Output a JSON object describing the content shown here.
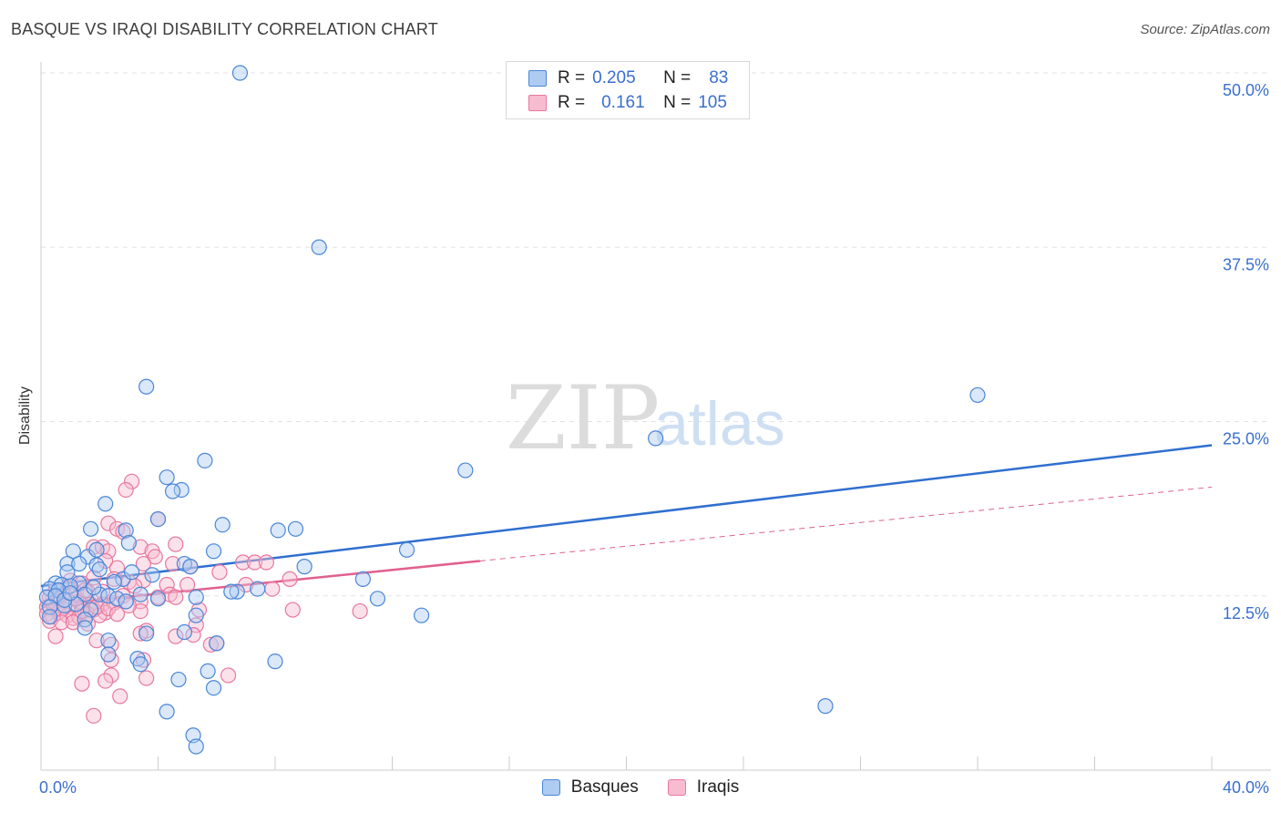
{
  "header": {
    "title": "BASQUE VS IRAQI DISABILITY CORRELATION CHART",
    "source": "Source: ZipAtlas.com"
  },
  "watermark": {
    "part1": "ZIP",
    "part2": "atlas"
  },
  "legend": {
    "basques": {
      "r_label": "R =",
      "r_value": "0.205",
      "n_label": "N =",
      "n_value": "83"
    },
    "iraqis": {
      "r_label": "R =",
      "r_value": "0.161",
      "n_label": "N =",
      "n_value": "105"
    }
  },
  "bottom_legend": {
    "basques": "Basques",
    "iraqis": "Iraqis"
  },
  "colors": {
    "basques_fill": "#aecbf2",
    "basques_stroke": "#4a86d8",
    "basques_line": "#2f6fd0",
    "iraqis_fill": "#f7bcd0",
    "iraqis_stroke": "#e8779e",
    "iraqis_line": "#e0608e",
    "grid": "#e3e3e3",
    "tick_label": "#3a6fd0"
  },
  "chart_data": {
    "type": "scatter",
    "title": "BASQUE VS IRAQI DISABILITY CORRELATION CHART",
    "xlabel": "",
    "ylabel": "Disability",
    "xlim": [
      0,
      40
    ],
    "ylim": [
      0,
      50
    ],
    "x_tick_labels": [
      "0.0%",
      "40.0%"
    ],
    "y_ticks": [
      {
        "value": 12.5,
        "label": "12.5%"
      },
      {
        "value": 25.0,
        "label": "25.0%"
      },
      {
        "value": 37.5,
        "label": "37.5%"
      },
      {
        "value": 50.0,
        "label": "50.0%"
      }
    ],
    "grid": true,
    "series": [
      {
        "name": "Basques",
        "r": 0.205,
        "n": 83,
        "trend": {
          "x": [
            0,
            40
          ],
          "y": [
            13.2,
            23.3
          ],
          "style": "solid"
        },
        "points": [
          [
            6.8,
            50.0
          ],
          [
            9.5,
            37.5
          ],
          [
            3.6,
            27.5
          ],
          [
            32.0,
            26.9
          ],
          [
            21.0,
            23.8
          ],
          [
            14.5,
            21.5
          ],
          [
            5.6,
            22.2
          ],
          [
            4.3,
            21.0
          ],
          [
            4.8,
            20.1
          ],
          [
            4.5,
            20.0
          ],
          [
            2.2,
            19.1
          ],
          [
            4.0,
            18.0
          ],
          [
            6.2,
            17.6
          ],
          [
            1.7,
            17.3
          ],
          [
            8.1,
            17.2
          ],
          [
            8.7,
            17.3
          ],
          [
            2.9,
            17.2
          ],
          [
            3.0,
            16.3
          ],
          [
            12.5,
            15.8
          ],
          [
            1.1,
            15.7
          ],
          [
            5.9,
            15.7
          ],
          [
            1.6,
            15.3
          ],
          [
            1.9,
            15.8
          ],
          [
            0.9,
            14.8
          ],
          [
            1.3,
            14.8
          ],
          [
            1.9,
            14.7
          ],
          [
            4.9,
            14.8
          ],
          [
            5.1,
            14.6
          ],
          [
            9.0,
            14.6
          ],
          [
            2.0,
            14.4
          ],
          [
            0.9,
            14.2
          ],
          [
            0.5,
            13.4
          ],
          [
            1.3,
            13.4
          ],
          [
            0.7,
            13.3
          ],
          [
            1.0,
            13.2
          ],
          [
            0.3,
            13.0
          ],
          [
            0.6,
            12.9
          ],
          [
            2.8,
            13.7
          ],
          [
            3.1,
            14.2
          ],
          [
            11.0,
            13.7
          ],
          [
            0.2,
            12.4
          ],
          [
            0.5,
            12.5
          ],
          [
            1.5,
            12.6
          ],
          [
            2.0,
            12.6
          ],
          [
            2.3,
            12.5
          ],
          [
            2.6,
            12.3
          ],
          [
            3.4,
            12.6
          ],
          [
            4.0,
            12.3
          ],
          [
            5.3,
            12.4
          ],
          [
            6.7,
            12.8
          ],
          [
            11.5,
            12.3
          ],
          [
            0.3,
            11.7
          ],
          [
            0.8,
            11.8
          ],
          [
            1.2,
            11.9
          ],
          [
            1.7,
            11.5
          ],
          [
            2.9,
            12.1
          ],
          [
            13.0,
            11.1
          ],
          [
            0.3,
            11.0
          ],
          [
            5.3,
            11.1
          ],
          [
            1.5,
            10.8
          ],
          [
            1.5,
            10.2
          ],
          [
            3.6,
            9.8
          ],
          [
            4.9,
            9.9
          ],
          [
            6.0,
            9.1
          ],
          [
            2.3,
            9.3
          ],
          [
            2.3,
            8.3
          ],
          [
            3.3,
            8.0
          ],
          [
            3.4,
            7.6
          ],
          [
            8.0,
            7.8
          ],
          [
            5.7,
            7.1
          ],
          [
            4.7,
            6.5
          ],
          [
            5.9,
            5.9
          ],
          [
            4.3,
            4.2
          ],
          [
            26.8,
            4.6
          ],
          [
            5.2,
            2.5
          ],
          [
            5.3,
            1.7
          ],
          [
            0.8,
            12.2
          ],
          [
            1.0,
            12.7
          ],
          [
            1.8,
            13.1
          ],
          [
            2.5,
            13.5
          ],
          [
            3.8,
            14.0
          ],
          [
            6.5,
            12.8
          ],
          [
            7.4,
            13.0
          ]
        ]
      },
      {
        "name": "Iraqis",
        "r": 0.161,
        "n": 105,
        "trend": {
          "x": [
            0,
            15
          ],
          "y": [
            11.8,
            15.0
          ],
          "style": "solid",
          "extension": {
            "x": [
              15,
              40
            ],
            "y": [
              15.0,
              20.3
            ],
            "style": "dashed"
          }
        },
        "points": [
          [
            3.1,
            20.7
          ],
          [
            2.9,
            20.1
          ],
          [
            4.0,
            18.0
          ],
          [
            2.3,
            17.7
          ],
          [
            2.6,
            17.3
          ],
          [
            2.8,
            17.1
          ],
          [
            3.4,
            16.0
          ],
          [
            4.6,
            16.2
          ],
          [
            1.8,
            16.0
          ],
          [
            2.1,
            16.0
          ],
          [
            2.3,
            15.7
          ],
          [
            3.8,
            15.7
          ],
          [
            3.9,
            15.3
          ],
          [
            2.2,
            15.0
          ],
          [
            3.5,
            14.8
          ],
          [
            4.5,
            14.8
          ],
          [
            6.9,
            14.9
          ],
          [
            7.3,
            14.9
          ],
          [
            7.7,
            14.9
          ],
          [
            2.6,
            14.5
          ],
          [
            5.1,
            14.6
          ],
          [
            6.1,
            14.2
          ],
          [
            1.8,
            13.8
          ],
          [
            2.5,
            13.7
          ],
          [
            3.0,
            13.5
          ],
          [
            3.5,
            13.6
          ],
          [
            4.3,
            13.3
          ],
          [
            5.0,
            13.3
          ],
          [
            7.0,
            13.3
          ],
          [
            7.9,
            13.0
          ],
          [
            8.5,
            13.7
          ],
          [
            1.0,
            13.6
          ],
          [
            1.4,
            13.4
          ],
          [
            0.9,
            13.1
          ],
          [
            0.5,
            12.9
          ],
          [
            0.8,
            12.6
          ],
          [
            1.2,
            12.7
          ],
          [
            1.6,
            12.8
          ],
          [
            2.1,
            12.8
          ],
          [
            4.4,
            12.6
          ],
          [
            4.6,
            12.4
          ],
          [
            0.4,
            12.3
          ],
          [
            0.6,
            12.1
          ],
          [
            0.9,
            12.2
          ],
          [
            1.3,
            12.1
          ],
          [
            1.7,
            11.9
          ],
          [
            2.1,
            11.9
          ],
          [
            2.5,
            12.0
          ],
          [
            3.4,
            12.1
          ],
          [
            4.0,
            12.4
          ],
          [
            0.2,
            11.7
          ],
          [
            0.5,
            11.6
          ],
          [
            0.7,
            11.5
          ],
          [
            1.0,
            11.7
          ],
          [
            1.4,
            11.6
          ],
          [
            1.8,
            11.5
          ],
          [
            2.2,
            11.3
          ],
          [
            3.4,
            11.4
          ],
          [
            5.4,
            11.5
          ],
          [
            8.6,
            11.5
          ],
          [
            10.9,
            11.4
          ],
          [
            0.2,
            11.2
          ],
          [
            0.4,
            11.0
          ],
          [
            0.6,
            11.3
          ],
          [
            0.9,
            11.1
          ],
          [
            1.1,
            10.9
          ],
          [
            1.3,
            11.0
          ],
          [
            1.6,
            11.2
          ],
          [
            2.0,
            11.1
          ],
          [
            0.3,
            10.7
          ],
          [
            0.7,
            10.6
          ],
          [
            1.1,
            10.6
          ],
          [
            1.6,
            10.5
          ],
          [
            5.3,
            10.4
          ],
          [
            3.6,
            10.0
          ],
          [
            3.4,
            9.8
          ],
          [
            5.2,
            9.7
          ],
          [
            0.5,
            9.6
          ],
          [
            1.9,
            9.3
          ],
          [
            2.4,
            9.0
          ],
          [
            5.8,
            9.0
          ],
          [
            4.6,
            9.6
          ],
          [
            6.0,
            9.1
          ],
          [
            2.4,
            7.9
          ],
          [
            3.5,
            7.9
          ],
          [
            2.4,
            6.8
          ],
          [
            2.2,
            6.4
          ],
          [
            6.4,
            6.8
          ],
          [
            1.4,
            6.2
          ],
          [
            3.6,
            6.6
          ],
          [
            2.7,
            5.3
          ],
          [
            1.8,
            3.9
          ],
          [
            0.3,
            12.4
          ],
          [
            1.2,
            12.3
          ],
          [
            2.8,
            12.5
          ],
          [
            0.4,
            11.9
          ],
          [
            0.8,
            11.8
          ],
          [
            1.4,
            11.4
          ],
          [
            1.9,
            11.7
          ],
          [
            2.3,
            11.6
          ],
          [
            2.6,
            11.2
          ],
          [
            3.0,
            11.8
          ],
          [
            0.6,
            12.5
          ],
          [
            1.5,
            12.9
          ],
          [
            3.2,
            13.2
          ]
        ]
      }
    ]
  }
}
